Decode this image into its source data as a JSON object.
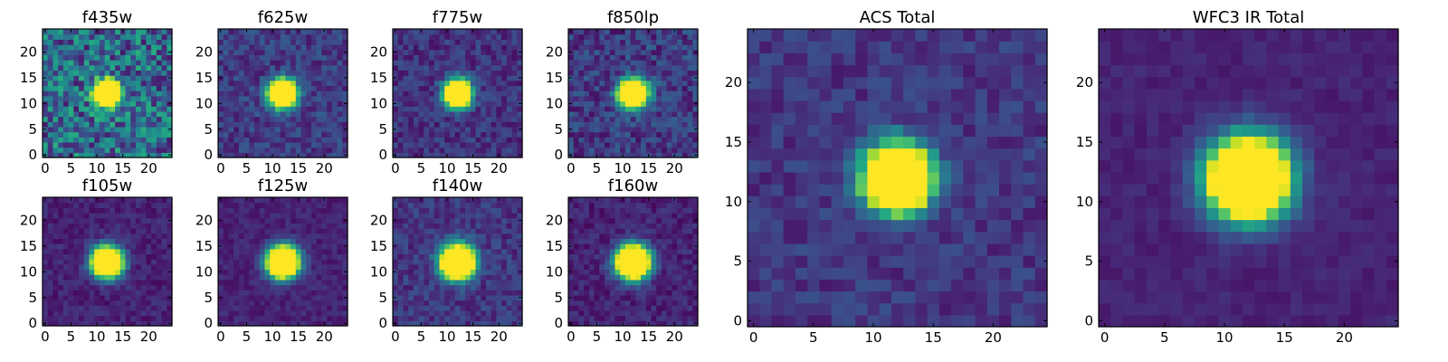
{
  "colormap": "viridis",
  "chart_data": [
    {
      "type": "heatmap",
      "title": "f435w",
      "x_ticks": [
        0,
        5,
        10,
        15,
        20
      ],
      "y_ticks": [
        0,
        5,
        10,
        15,
        20
      ],
      "xlim": [
        -0.5,
        24.5
      ],
      "ylim": [
        -0.5,
        24.5
      ],
      "grid": false,
      "source_center": [
        12,
        12
      ],
      "source_sigma": 1.6,
      "background_level": 0.35,
      "noise_level": 0.28
    },
    {
      "type": "heatmap",
      "title": "f625w",
      "x_ticks": [
        0,
        5,
        10,
        15,
        20
      ],
      "y_ticks": [
        0,
        5,
        10,
        15,
        20
      ],
      "xlim": [
        -0.5,
        24.5
      ],
      "ylim": [
        -0.5,
        24.5
      ],
      "grid": false,
      "source_center": [
        12,
        12
      ],
      "source_sigma": 1.7,
      "background_level": 0.18,
      "noise_level": 0.12
    },
    {
      "type": "heatmap",
      "title": "f775w",
      "x_ticks": [
        0,
        5,
        10,
        15,
        20
      ],
      "y_ticks": [
        0,
        5,
        10,
        15,
        20
      ],
      "xlim": [
        -0.5,
        24.5
      ],
      "ylim": [
        -0.5,
        24.5
      ],
      "grid": false,
      "source_center": [
        12,
        12
      ],
      "source_sigma": 1.7,
      "background_level": 0.15,
      "noise_level": 0.11
    },
    {
      "type": "heatmap",
      "title": "f850lp",
      "x_ticks": [
        0,
        5,
        10,
        15,
        20
      ],
      "y_ticks": [
        0,
        5,
        10,
        15,
        20
      ],
      "xlim": [
        -0.5,
        24.5
      ],
      "ylim": [
        -0.5,
        24.5
      ],
      "grid": false,
      "source_center": [
        12,
        12
      ],
      "source_sigma": 1.8,
      "background_level": 0.18,
      "noise_level": 0.14
    },
    {
      "type": "heatmap",
      "title": "f105w",
      "x_ticks": [
        0,
        5,
        10,
        15,
        20
      ],
      "y_ticks": [
        0,
        5,
        10,
        15,
        20
      ],
      "xlim": [
        -0.5,
        24.5
      ],
      "ylim": [
        -0.5,
        24.5
      ],
      "grid": false,
      "source_center": [
        12,
        12
      ],
      "source_sigma": 1.9,
      "background_level": 0.1,
      "noise_level": 0.07
    },
    {
      "type": "heatmap",
      "title": "f125w",
      "x_ticks": [
        0,
        5,
        10,
        15,
        20
      ],
      "y_ticks": [
        0,
        5,
        10,
        15,
        20
      ],
      "xlim": [
        -0.5,
        24.5
      ],
      "ylim": [
        -0.5,
        24.5
      ],
      "grid": false,
      "source_center": [
        12,
        12
      ],
      "source_sigma": 2.0,
      "background_level": 0.1,
      "noise_level": 0.06
    },
    {
      "type": "heatmap",
      "title": "f140w",
      "x_ticks": [
        0,
        5,
        10,
        15,
        20
      ],
      "y_ticks": [
        0,
        5,
        10,
        15,
        20
      ],
      "xlim": [
        -0.5,
        24.5
      ],
      "ylim": [
        -0.5,
        24.5
      ],
      "grid": false,
      "source_center": [
        12,
        12
      ],
      "source_sigma": 2.1,
      "background_level": 0.16,
      "noise_level": 0.1
    },
    {
      "type": "heatmap",
      "title": "f160w",
      "x_ticks": [
        0,
        5,
        10,
        15,
        20
      ],
      "y_ticks": [
        0,
        5,
        10,
        15,
        20
      ],
      "xlim": [
        -0.5,
        24.5
      ],
      "ylim": [
        -0.5,
        24.5
      ],
      "grid": false,
      "source_center": [
        12,
        12
      ],
      "source_sigma": 2.1,
      "background_level": 0.1,
      "noise_level": 0.08
    },
    {
      "type": "heatmap",
      "title": "ACS Total",
      "x_ticks": [
        0,
        5,
        10,
        15,
        20
      ],
      "y_ticks": [
        0,
        5,
        10,
        15,
        20
      ],
      "xlim": [
        -0.5,
        24.5
      ],
      "ylim": [
        -0.5,
        24.5
      ],
      "grid": false,
      "source_center": [
        12,
        12
      ],
      "source_sigma": 1.8,
      "background_level": 0.16,
      "noise_level": 0.09
    },
    {
      "type": "heatmap",
      "title": "WFC3 IR Total",
      "x_ticks": [
        0,
        5,
        10,
        15,
        20
      ],
      "y_ticks": [
        0,
        5,
        10,
        15,
        20
      ],
      "xlim": [
        -0.5,
        24.5
      ],
      "ylim": [
        -0.5,
        24.5
      ],
      "grid": false,
      "source_center": [
        12,
        12
      ],
      "source_sigma": 2.2,
      "background_level": 0.1,
      "noise_level": 0.04
    }
  ]
}
